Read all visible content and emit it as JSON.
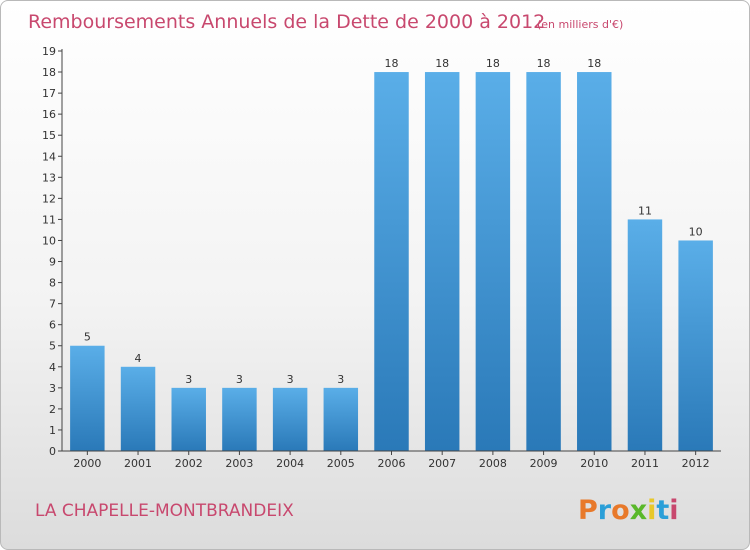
{
  "header": {
    "title": "Remboursements Annuels de la Dette de 2000 à 2012",
    "unit": "(en milliers d'€)"
  },
  "footer": {
    "commune": "LA CHAPELLE-MONTBRANDEIX",
    "brand": "Proxiti"
  },
  "colors": {
    "title": "#c8486e",
    "bar_top": "#5aaee8",
    "bar_bottom": "#2a79b8",
    "brand_letters": [
      "#e8792a",
      "#2a9fd8",
      "#e8792a",
      "#5ab82a",
      "#e8c82a",
      "#2a9fd8",
      "#c8486e"
    ]
  },
  "chart_data": {
    "type": "bar",
    "title": "Remboursements Annuels de la Dette de 2000 à 2012",
    "subtitle": "(en milliers d'€)",
    "xlabel": "",
    "ylabel": "",
    "categories": [
      "2000",
      "2001",
      "2002",
      "2003",
      "2004",
      "2005",
      "2006",
      "2007",
      "2008",
      "2009",
      "2010",
      "2011",
      "2012"
    ],
    "values": [
      5,
      4,
      3,
      3,
      3,
      3,
      18,
      18,
      18,
      18,
      18,
      11,
      10
    ],
    "ylim": [
      0,
      19
    ],
    "yticks": [
      0,
      1,
      2,
      3,
      4,
      5,
      6,
      7,
      8,
      9,
      10,
      11,
      12,
      13,
      14,
      15,
      16,
      17,
      18,
      19
    ],
    "grid": false,
    "legend": "none"
  }
}
